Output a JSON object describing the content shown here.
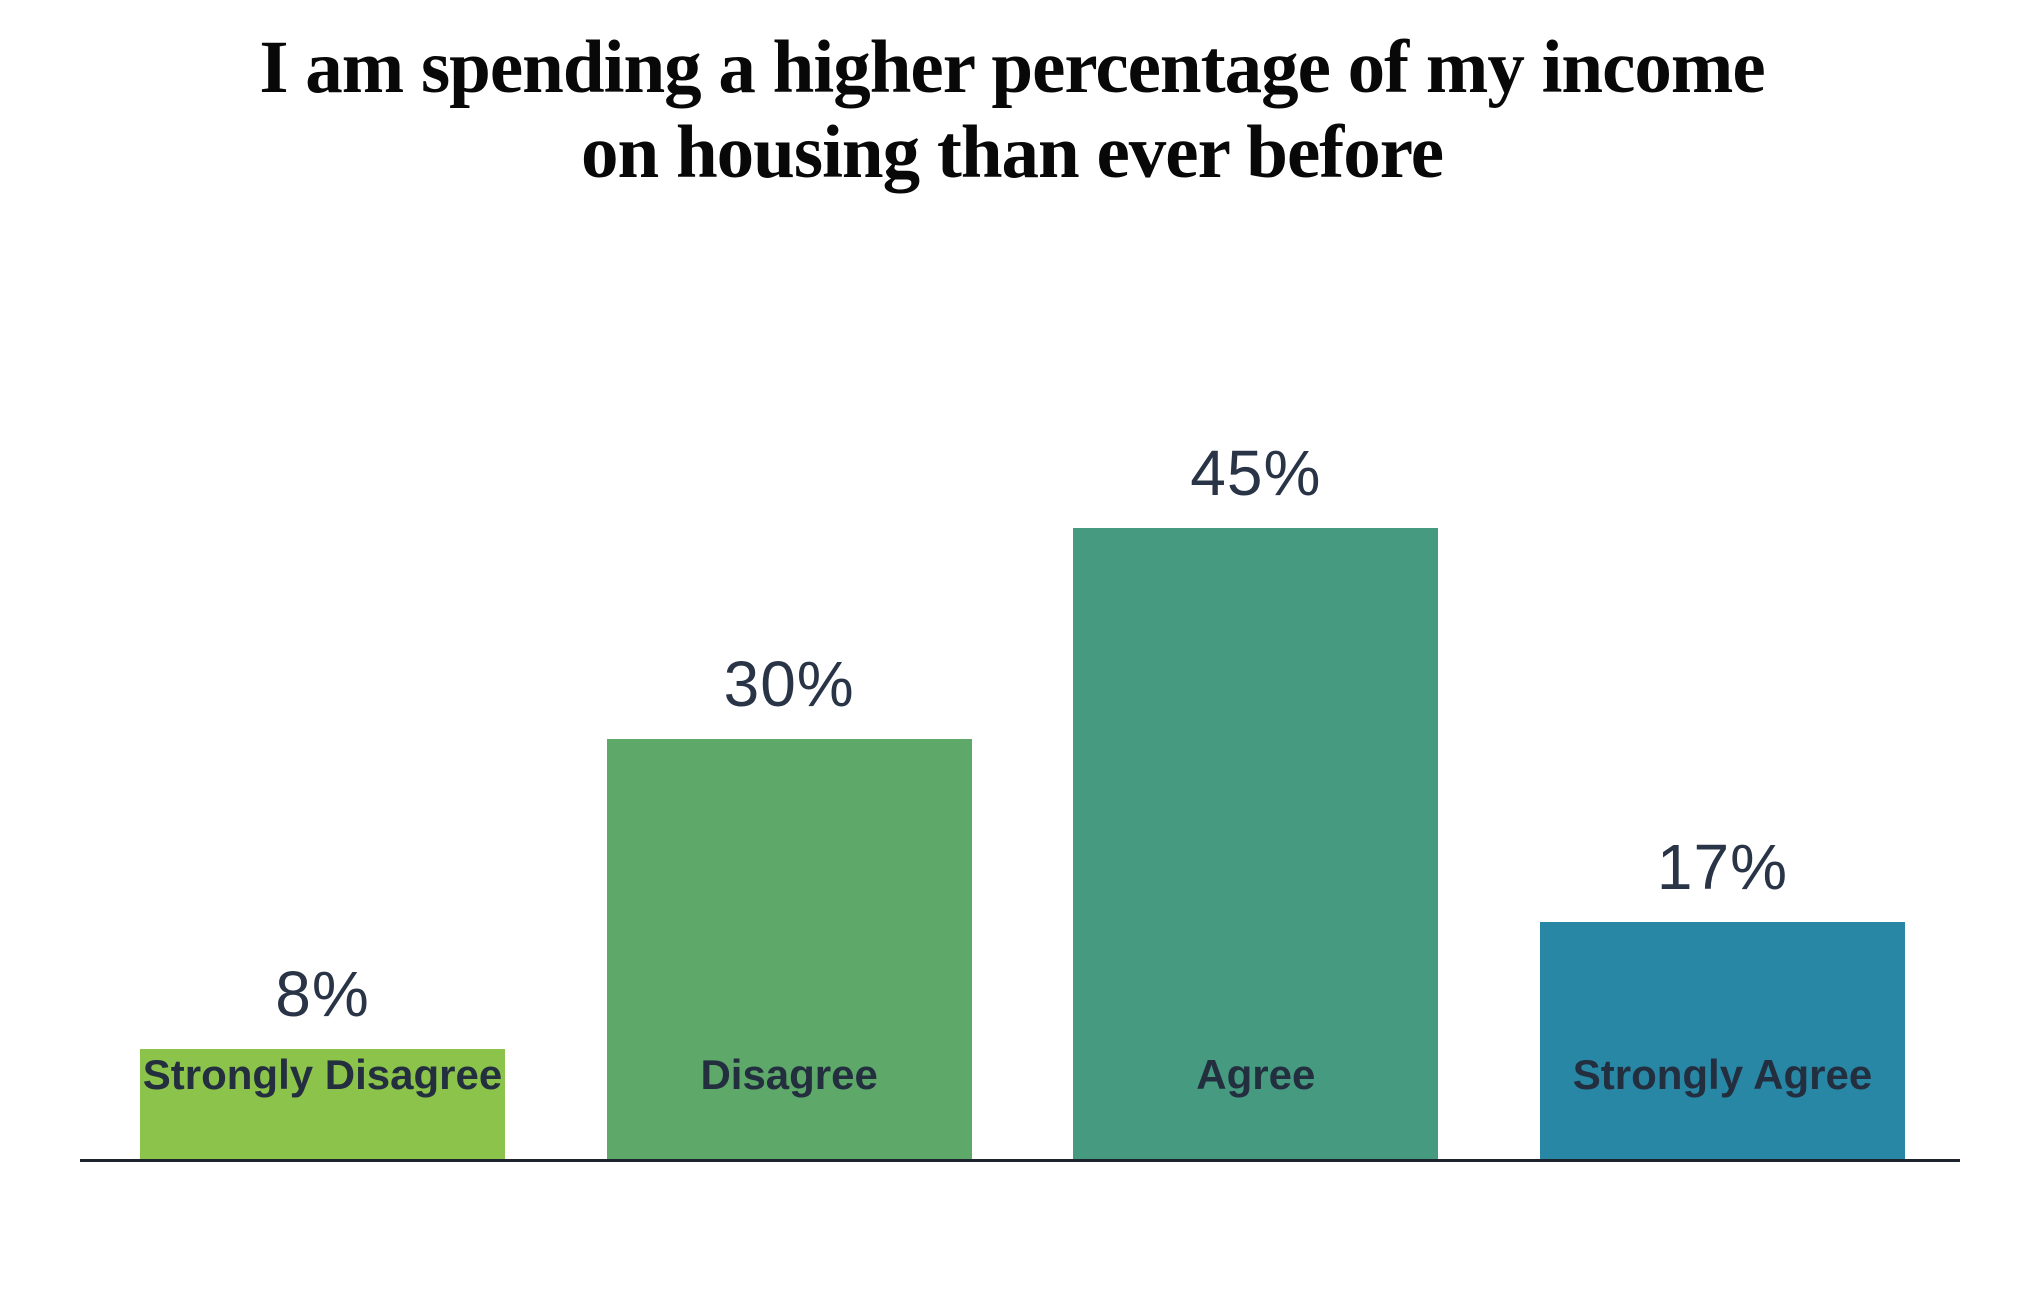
{
  "chart_data": {
    "type": "bar",
    "title": "I am spending a higher percentage of my income on housing than ever before",
    "title_lines": [
      "I am spending a higher percentage of my income",
      "on housing than ever before"
    ],
    "categories": [
      "Strongly Disagree",
      "Disagree",
      "Agree",
      "Strongly Agree"
    ],
    "values": [
      8,
      30,
      45,
      17
    ],
    "value_labels": [
      "8%",
      "30%",
      "45%",
      "17%"
    ],
    "bar_colors": [
      "#8cc44b",
      "#5ea96a",
      "#459a80",
      "#2887a5"
    ],
    "xlabel": "",
    "ylabel": "",
    "ylim": [
      0,
      45
    ],
    "grid": false,
    "legend": "none",
    "text_color": "#2a3447",
    "axis_color": "#1e242e"
  }
}
